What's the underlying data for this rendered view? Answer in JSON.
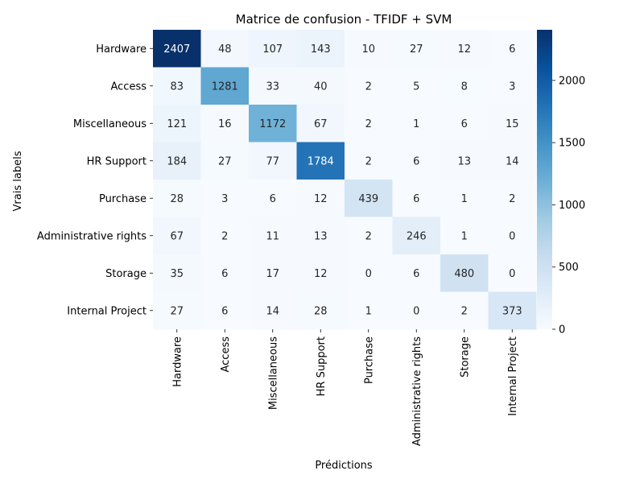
{
  "chart_data": {
    "type": "heatmap",
    "title": "Matrice de confusion - TFIDF + SVM",
    "xlabel": "Prédictions",
    "ylabel": "Vrais labels",
    "row_labels": [
      "Hardware",
      "Access",
      "Miscellaneous",
      "HR Support",
      "Purchase",
      "Administrative rights",
      "Storage",
      "Internal Project"
    ],
    "col_labels": [
      "Hardware",
      "Access",
      "Miscellaneous",
      "HR Support",
      "Purchase",
      "Administrative rights",
      "Storage",
      "Internal Project"
    ],
    "values": [
      [
        2407,
        48,
        107,
        143,
        10,
        27,
        12,
        6
      ],
      [
        83,
        1281,
        33,
        40,
        2,
        5,
        8,
        3
      ],
      [
        121,
        16,
        1172,
        67,
        2,
        1,
        6,
        15
      ],
      [
        184,
        27,
        77,
        1784,
        2,
        6,
        13,
        14
      ],
      [
        28,
        3,
        6,
        12,
        439,
        6,
        1,
        2
      ],
      [
        67,
        2,
        11,
        13,
        2,
        246,
        1,
        0
      ],
      [
        35,
        6,
        17,
        12,
        0,
        6,
        480,
        0
      ],
      [
        27,
        6,
        14,
        28,
        1,
        0,
        2,
        373
      ]
    ],
    "colormap": "Blues",
    "color_range": [
      0,
      2407
    ],
    "colorbar_ticks": [
      0,
      500,
      1000,
      1500,
      2000
    ]
  }
}
